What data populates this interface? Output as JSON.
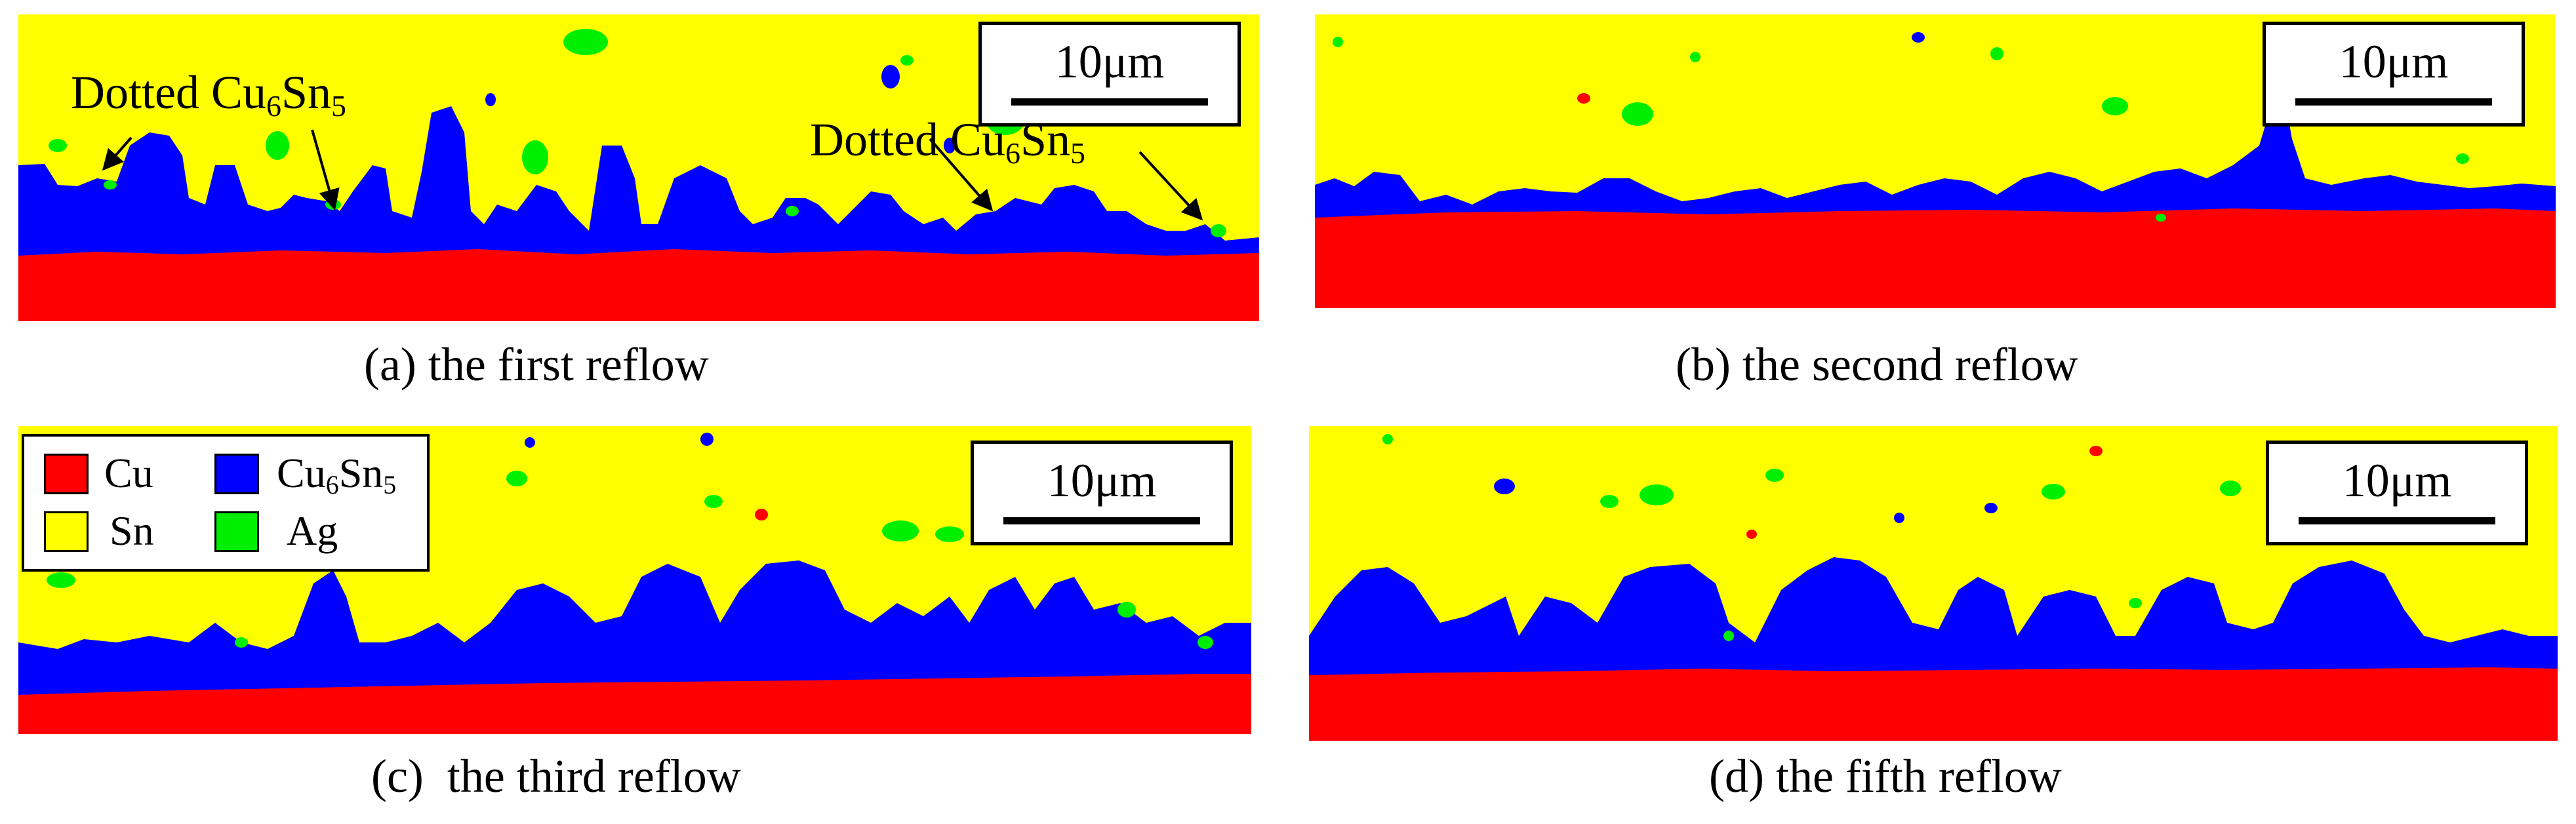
{
  "figure": {
    "panels": [
      {
        "id": "a",
        "caption": "(a) the first reflow",
        "scale_bar": "10μm"
      },
      {
        "id": "b",
        "caption": "(b) the second reflow",
        "scale_bar": "10μm"
      },
      {
        "id": "c",
        "caption": "(c)  the third reflow",
        "scale_bar": "10μm"
      },
      {
        "id": "d",
        "caption": "(d) the fifth reflow",
        "scale_bar": "10μm"
      }
    ],
    "annotations": {
      "word": "Dotted Cu",
      "sub": "6",
      "mid": "Sn",
      "sub2": "5"
    },
    "legend": {
      "items": [
        {
          "label": "Cu",
          "sub": "",
          "tail": "",
          "color": "#ff0000"
        },
        {
          "label": "Cu",
          "sub": "6",
          "tail": "Sn",
          "sub2": "5",
          "color": "#0000ff"
        },
        {
          "label": "Sn",
          "sub": "",
          "tail": "",
          "color": "#ffff00"
        },
        {
          "label": "Ag",
          "sub": "",
          "tail": "",
          "color": "#00ee00"
        }
      ]
    },
    "colors": {
      "cu": "#ff0000",
      "cu6sn5": "#0000ff",
      "sn": "#ffff00",
      "ag": "#00ee00"
    }
  }
}
